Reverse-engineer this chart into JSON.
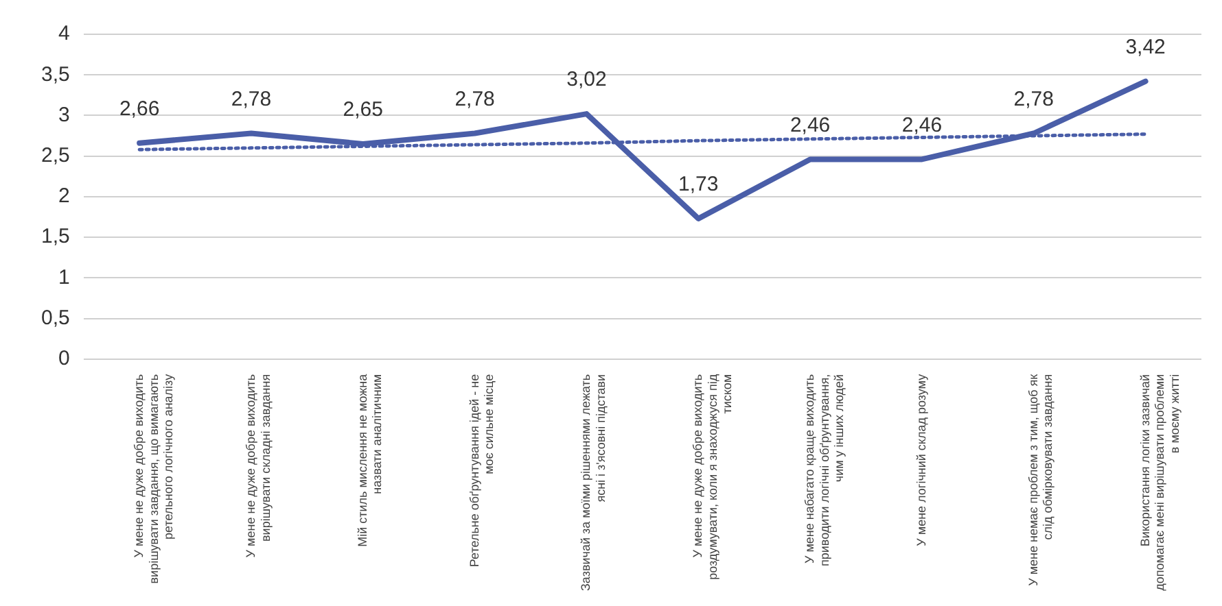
{
  "chart_data": {
    "type": "line",
    "categories": [
      "У мене не дуже добре виходить вирішувати завдання, що вимагають ретельного логічного аналізу",
      "У мене не дуже добре виходить вирішувати складні завдання",
      "Мій стиль мислення не можна назвати аналітичним",
      "Ретельне обґрунтування ідей - не моє сильне місце",
      "Зазвичай за моїми рішеннями лежать ясні і з'ясовні підстави",
      "У мене не дуже добре виходить роздумувати, коли я знаходжуся під тиском",
      "У мене набагато краще виходить приводити логічні обґрунтування, чим у інших людей",
      "У мене логічний склад розуму",
      "У мене немає проблем з тим, щоб як слід обмірковувати завдання",
      "Використання логіки зазвичай допомагає мені вирішувати проблеми в моєму житті"
    ],
    "series": [
      {
        "color": "#4a5ea8",
        "values": [
          2.66,
          2.78,
          2.65,
          2.78,
          3.02,
          1.73,
          2.46,
          2.46,
          2.78,
          3.42
        ],
        "value_labels": [
          "2,66",
          "2,78",
          "2,65",
          "2,78",
          "3,02",
          "1,73",
          "2,46",
          "2,46",
          "2,78",
          "3,42"
        ]
      },
      {
        "type": "line",
        "line_style": "dotted",
        "color": "#4a5ea8",
        "values": [
          2.58,
          2.6,
          2.62,
          2.64,
          2.66,
          2.69,
          2.71,
          2.73,
          2.75,
          2.77
        ]
      }
    ],
    "ylim": [
      0,
      4
    ],
    "yticks": [
      0,
      {
        "value": 0.5,
        "label": "0,5"
      },
      1,
      {
        "value": 1.5,
        "label": "1,5"
      },
      2,
      {
        "value": 2.5,
        "label": "2,5"
      },
      3,
      {
        "value": 3.5,
        "label": "3,5"
      },
      4
    ],
    "grid": "y",
    "legend": false,
    "marker": "none",
    "line_style": "solid"
  }
}
